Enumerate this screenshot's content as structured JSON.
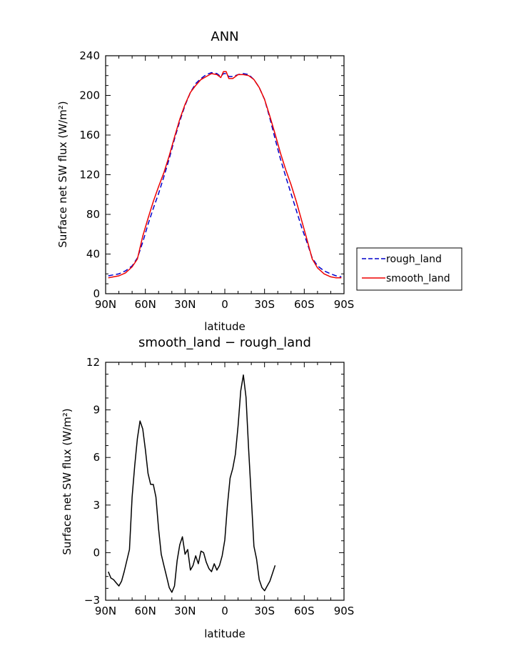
{
  "chart_data": [
    {
      "type": "line",
      "title": "ANN",
      "xlabel": "latitude",
      "ylabel": "Surface net SW flux (W/m²)",
      "xlim": [
        90,
        -90
      ],
      "ylim": [
        0,
        240
      ],
      "x_ticks": [
        90,
        60,
        30,
        0,
        -30,
        -60,
        -90
      ],
      "x_tick_labels": [
        "90N",
        "60N",
        "30N",
        "0",
        "30S",
        "60S",
        "90S"
      ],
      "y_ticks": [
        0,
        40,
        80,
        120,
        160,
        200,
        240
      ],
      "y_tick_labels": [
        "0",
        "40",
        "80",
        "120",
        "160",
        "200",
        "240"
      ],
      "legend_position": "outside-right",
      "series": [
        {
          "name": "rough_land",
          "color": "#0000cc",
          "style": "dashed",
          "points": [
            [
              88,
              18
            ],
            [
              84,
              19
            ],
            [
              80,
              20
            ],
            [
              75,
              23
            ],
            [
              70,
              28
            ],
            [
              66,
              36
            ],
            [
              62,
              52
            ],
            [
              58,
              70
            ],
            [
              54,
              86
            ],
            [
              50,
              101
            ],
            [
              46,
              118
            ],
            [
              42,
              136
            ],
            [
              38,
              156
            ],
            [
              34,
              174
            ],
            [
              30,
              190
            ],
            [
              26,
              203
            ],
            [
              22,
              212
            ],
            [
              18,
              217
            ],
            [
              14,
              221
            ],
            [
              10,
              223
            ],
            [
              6,
              222
            ],
            [
              3,
              219
            ],
            [
              1,
              222
            ],
            [
              -1,
              222
            ],
            [
              -3,
              219
            ],
            [
              -6,
              219
            ],
            [
              -10,
              221
            ],
            [
              -14,
              222
            ],
            [
              -18,
              221
            ],
            [
              -22,
              216
            ],
            [
              -26,
              208
            ],
            [
              -30,
              196
            ],
            [
              -34,
              177
            ],
            [
              -38,
              156
            ],
            [
              -42,
              136
            ],
            [
              -46,
              118
            ],
            [
              -50,
              101
            ],
            [
              -54,
              84
            ],
            [
              -58,
              67
            ],
            [
              -62,
              52
            ],
            [
              -66,
              36
            ],
            [
              -70,
              28
            ],
            [
              -75,
              23
            ],
            [
              -80,
              20
            ],
            [
              -84,
              18
            ],
            [
              -88,
              17
            ]
          ]
        },
        {
          "name": "smooth_land",
          "color": "#ee0000",
          "style": "solid",
          "points": [
            [
              88,
              16
            ],
            [
              84,
              17
            ],
            [
              80,
              18
            ],
            [
              75,
              21
            ],
            [
              70,
              27
            ],
            [
              66,
              35
            ],
            [
              62,
              58
            ],
            [
              58,
              76
            ],
            [
              54,
              93
            ],
            [
              50,
              108
            ],
            [
              46,
              122
            ],
            [
              42,
              139
            ],
            [
              38,
              158
            ],
            [
              34,
              176
            ],
            [
              30,
              191
            ],
            [
              26,
              203
            ],
            [
              22,
              210
            ],
            [
              18,
              216
            ],
            [
              14,
              219
            ],
            [
              10,
              222
            ],
            [
              6,
              221
            ],
            [
              3,
              218
            ],
            [
              1,
              224
            ],
            [
              -1,
              224
            ],
            [
              -3,
              217
            ],
            [
              -6,
              217
            ],
            [
              -10,
              221
            ],
            [
              -14,
              221
            ],
            [
              -18,
              220
            ],
            [
              -22,
              216
            ],
            [
              -26,
              208
            ],
            [
              -30,
              196
            ],
            [
              -34,
              179
            ],
            [
              -38,
              161
            ],
            [
              -42,
              142
            ],
            [
              -46,
              125
            ],
            [
              -50,
              110
            ],
            [
              -54,
              93
            ],
            [
              -58,
              74
            ],
            [
              -62,
              55
            ],
            [
              -66,
              35
            ],
            [
              -70,
              26
            ],
            [
              -75,
              20
            ],
            [
              -80,
              17
            ],
            [
              -84,
              16
            ],
            [
              -88,
              16
            ]
          ]
        }
      ]
    },
    {
      "type": "line",
      "title": "smooth_land − rough_land",
      "xlabel": "latitude",
      "ylabel": "Surface net SW flux (W/m²)",
      "xlim": [
        90,
        -90
      ],
      "ylim": [
        -3,
        12
      ],
      "x_ticks": [
        90,
        60,
        30,
        0,
        -30,
        -60,
        -90
      ],
      "x_tick_labels": [
        "90N",
        "60N",
        "30N",
        "0",
        "30S",
        "60S",
        "90S"
      ],
      "y_ticks": [
        -3,
        0,
        3,
        6,
        9,
        12
      ],
      "y_tick_labels": [
        "−3",
        "0",
        "3",
        "6",
        "9",
        "12"
      ],
      "series": [
        {
          "color": "#000000",
          "style": "solid",
          "points": [
            [
              88,
              -1.2
            ],
            [
              86,
              -1.6
            ],
            [
              84,
              -1.7
            ],
            [
              82,
              -1.9
            ],
            [
              80,
              -2.1
            ],
            [
              78,
              -1.8
            ],
            [
              76,
              -1.2
            ],
            [
              74,
              -0.5
            ],
            [
              72,
              0.2
            ],
            [
              70,
              3.5
            ],
            [
              68,
              5.5
            ],
            [
              66,
              7.2
            ],
            [
              64,
              8.3
            ],
            [
              62,
              7.8
            ],
            [
              60,
              6.5
            ],
            [
              58,
              5.0
            ],
            [
              56,
              4.3
            ],
            [
              54,
              4.3
            ],
            [
              52,
              3.5
            ],
            [
              50,
              1.5
            ],
            [
              48,
              -0.1
            ],
            [
              46,
              -0.8
            ],
            [
              44,
              -1.5
            ],
            [
              42,
              -2.2
            ],
            [
              40,
              -2.5
            ],
            [
              38,
              -2.1
            ],
            [
              36,
              -0.5
            ],
            [
              34,
              0.5
            ],
            [
              32,
              1.0
            ],
            [
              30,
              -0.1
            ],
            [
              28,
              0.2
            ],
            [
              26,
              -1.1
            ],
            [
              24,
              -0.8
            ],
            [
              22,
              -0.2
            ],
            [
              20,
              -0.7
            ],
            [
              18,
              0.1
            ],
            [
              16,
              0.0
            ],
            [
              14,
              -0.6
            ],
            [
              12,
              -1.0
            ],
            [
              10,
              -1.2
            ],
            [
              8,
              -0.7
            ],
            [
              6,
              -1.1
            ],
            [
              4,
              -0.8
            ],
            [
              2,
              -0.2
            ],
            [
              0,
              0.8
            ],
            [
              -2,
              3.0
            ],
            [
              -4,
              4.7
            ],
            [
              -6,
              5.3
            ],
            [
              -8,
              6.2
            ],
            [
              -10,
              8.0
            ],
            [
              -12,
              10.2
            ],
            [
              -14,
              11.2
            ],
            [
              -16,
              9.8
            ],
            [
              -18,
              6.5
            ],
            [
              -20,
              3.5
            ],
            [
              -22,
              0.4
            ],
            [
              -24,
              -0.4
            ],
            [
              -26,
              -1.7
            ],
            [
              -28,
              -2.2
            ],
            [
              -30,
              -2.4
            ],
            [
              -32,
              -2.1
            ],
            [
              -34,
              -1.8
            ],
            [
              -36,
              -1.3
            ],
            [
              -38,
              -0.8
            ]
          ]
        }
      ]
    }
  ]
}
